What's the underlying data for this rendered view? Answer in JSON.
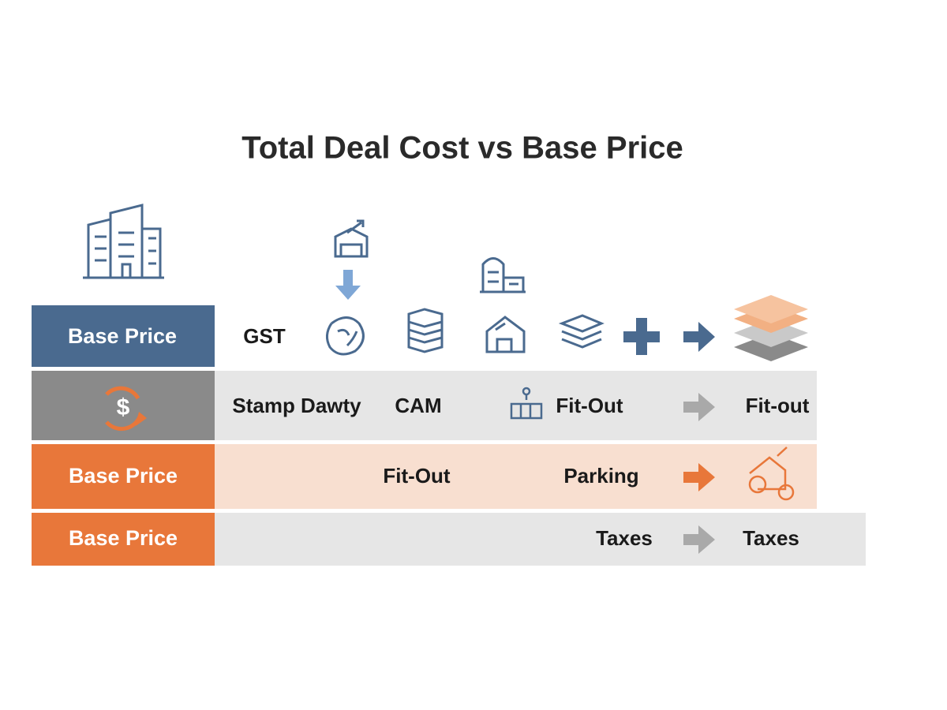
{
  "title": "Total Deal Cost vs Base Price",
  "rows": [
    {
      "label": "Base Price",
      "items": [
        "GST"
      ]
    },
    {
      "items": [
        "Stamp Dawty",
        "CAM",
        "Fit-Out",
        "Fit-out"
      ]
    },
    {
      "label": "Base Price",
      "items": [
        "Fit-Out",
        "Parking"
      ]
    },
    {
      "label": "Base Price",
      "items": [
        "Taxes",
        "Taxes"
      ]
    }
  ]
}
